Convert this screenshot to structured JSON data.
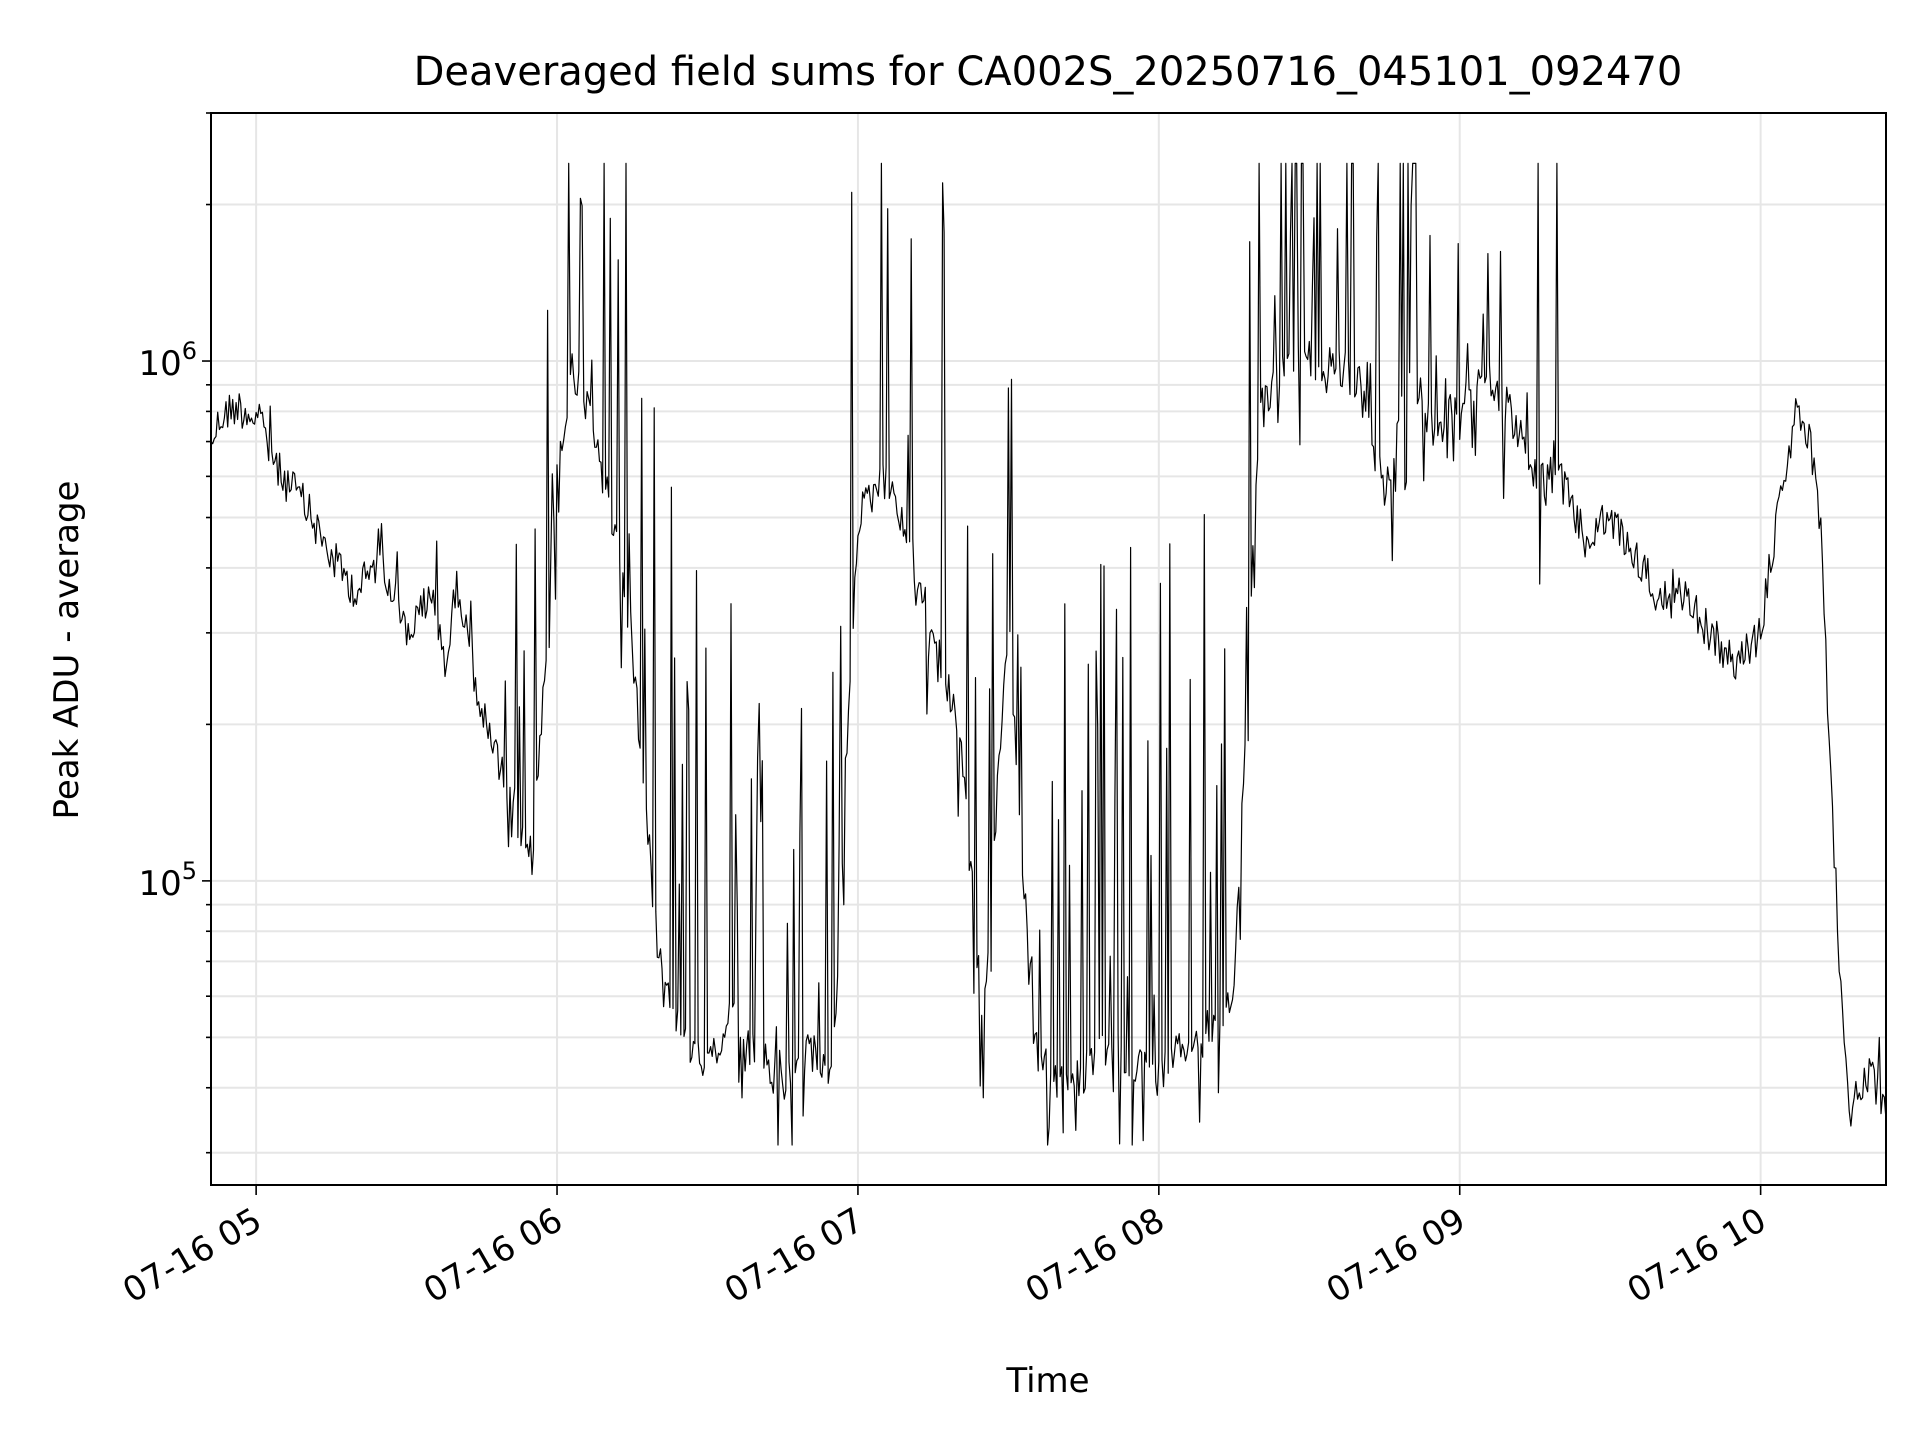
{
  "chart_data": {
    "type": "line",
    "title": "Deaveraged field sums for CA002S_20250716_045101_092470",
    "xlabel": "Time",
    "ylabel": "Peak ADU - average",
    "xscale": "time",
    "yscale": "log",
    "grid": true,
    "legend": "none",
    "line_color": "#000000",
    "grid_color": "#e6e6e6",
    "xlim": [
      "2025-07-16 04:51",
      "2025-07-16 10:25"
    ],
    "ylim": [
      26000,
      3000000
    ],
    "x_ticks": [
      {
        "value": "2025-07-16 05:00",
        "label": "07-16 05"
      },
      {
        "value": "2025-07-16 06:00",
        "label": "07-16 06"
      },
      {
        "value": "2025-07-16 07:00",
        "label": "07-16 07"
      },
      {
        "value": "2025-07-16 08:00",
        "label": "07-16 08"
      },
      {
        "value": "2025-07-16 09:00",
        "label": "07-16 09"
      },
      {
        "value": "2025-07-16 10:00",
        "label": "07-16 10"
      }
    ],
    "y_ticks": [
      {
        "value": 100000,
        "base": "10",
        "exp": "5"
      },
      {
        "value": 1000000,
        "base": "10",
        "exp": "6"
      }
    ],
    "series": [
      {
        "x": [
          "2025-07-16 04:51",
          "2025-07-16 04:53",
          "2025-07-16 04:56",
          "2025-07-16 05:00",
          "2025-07-16 05:05",
          "2025-07-16 05:08",
          "2025-07-16 05:10",
          "2025-07-16 05:15",
          "2025-07-16 05:20",
          "2025-07-16 05:25",
          "2025-07-16 05:30",
          "2025-07-16 05:35",
          "2025-07-16 05:38",
          "2025-07-16 05:40",
          "2025-07-16 05:45",
          "2025-07-16 05:50",
          "2025-07-16 05:55",
          "2025-07-16 06:00",
          "2025-07-16 06:03",
          "2025-07-16 06:06",
          "2025-07-16 06:10",
          "2025-07-16 06:15",
          "2025-07-16 06:20",
          "2025-07-16 06:25",
          "2025-07-16 06:30",
          "2025-07-16 06:35",
          "2025-07-16 06:40",
          "2025-07-16 06:45",
          "2025-07-16 06:50",
          "2025-07-16 06:55",
          "2025-07-16 07:00",
          "2025-07-16 07:05",
          "2025-07-16 07:10",
          "2025-07-16 07:15",
          "2025-07-16 07:20",
          "2025-07-16 07:25",
          "2025-07-16 07:30",
          "2025-07-16 07:35",
          "2025-07-16 07:40",
          "2025-07-16 07:45",
          "2025-07-16 07:50",
          "2025-07-16 07:55",
          "2025-07-16 08:00",
          "2025-07-16 08:05",
          "2025-07-16 08:10",
          "2025-07-16 08:15",
          "2025-07-16 08:20",
          "2025-07-16 08:25",
          "2025-07-16 08:30",
          "2025-07-16 08:35",
          "2025-07-16 08:40",
          "2025-07-16 08:45",
          "2025-07-16 08:50",
          "2025-07-16 08:55",
          "2025-07-16 09:00",
          "2025-07-16 09:05",
          "2025-07-16 09:10",
          "2025-07-16 09:15",
          "2025-07-16 09:20",
          "2025-07-16 09:25",
          "2025-07-16 09:30",
          "2025-07-16 09:35",
          "2025-07-16 09:40",
          "2025-07-16 09:45",
          "2025-07-16 09:50",
          "2025-07-16 09:55",
          "2025-07-16 10:00",
          "2025-07-16 10:03",
          "2025-07-16 10:06",
          "2025-07-16 10:08",
          "2025-07-16 10:10",
          "2025-07-16 10:12",
          "2025-07-16 10:14",
          "2025-07-16 10:16",
          "2025-07-16 10:18",
          "2025-07-16 10:20",
          "2025-07-16 10:22",
          "2025-07-16 10:25"
        ],
        "y": [
          700000,
          780000,
          820000,
          780000,
          600000,
          560000,
          520000,
          420000,
          360000,
          420000,
          300000,
          350000,
          260000,
          380000,
          210000,
          150000,
          110000,
          600000,
          950000,
          800000,
          550000,
          300000,
          75000,
          50000,
          45000,
          55000,
          45000,
          40000,
          48000,
          42000,
          500000,
          600000,
          450000,
          300000,
          200000,
          55000,
          320000,
          48000,
          40000,
          42000,
          48000,
          45000,
          42000,
          48000,
          52000,
          62000,
          800000,
          1000000,
          1000000,
          1000000,
          900000,
          550000,
          1000000,
          700000,
          850000,
          950000,
          800000,
          600000,
          600000,
          450000,
          500000,
          420000,
          350000,
          350000,
          300000,
          260000,
          300000,
          480000,
          700000,
          780000,
          680000,
          460000,
          160000,
          60000,
          36000,
          40000,
          42000,
          36000
        ]
      }
    ]
  }
}
